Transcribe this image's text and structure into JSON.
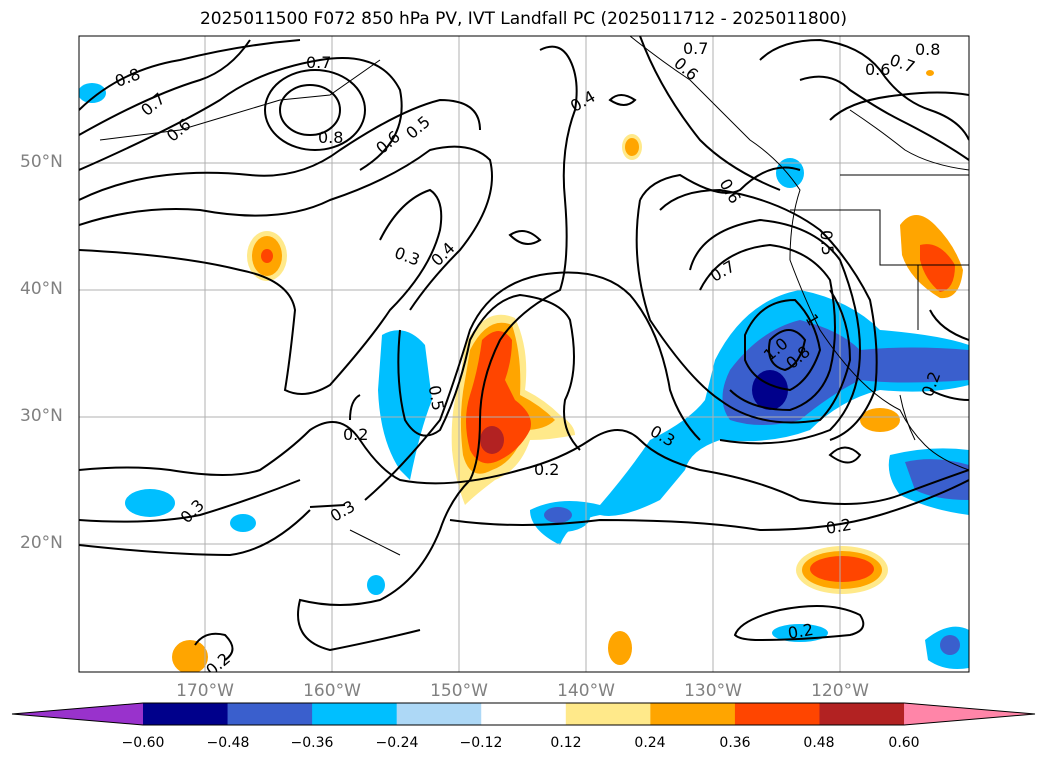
{
  "title": "2025011500 F072 850 hPa PV, IVT Landfall PC (2025011712 - 2025011800)",
  "latitude_labels": [
    "50°N",
    "40°N",
    "30°N",
    "20°N"
  ],
  "longitude_labels": [
    "170°W",
    "160°W",
    "150°W",
    "140°W",
    "130°W",
    "120°W"
  ],
  "contour_labels": [
    "0.8",
    "0.7",
    "0.6",
    "0.8",
    "0.6",
    "0.5",
    "0.7",
    "0.6",
    "0.4",
    "0.7",
    "0.6",
    "0.8",
    "0.7",
    "0.6",
    "0.5",
    "0.3",
    "0.4",
    "0.7",
    "1.0",
    "0.8",
    "1",
    "0.5",
    "0.2",
    "0.3",
    "0.2",
    "0.2",
    "0.3",
    "0.3",
    "0.2",
    "0.2",
    "0.2"
  ],
  "colorbar": {
    "ticks": [
      "−0.60",
      "−0.48",
      "−0.36",
      "−0.24",
      "−0.12",
      "0.12",
      "0.24",
      "0.36",
      "0.48",
      "0.60"
    ],
    "colors": [
      "#9932cc",
      "#00008b",
      "#3a5fcd",
      "#00bfff",
      "#add8f6",
      "#ffffff",
      "#ffe98a",
      "#ffa500",
      "#ff4500",
      "#b22222",
      "#ff85a8"
    ]
  }
}
